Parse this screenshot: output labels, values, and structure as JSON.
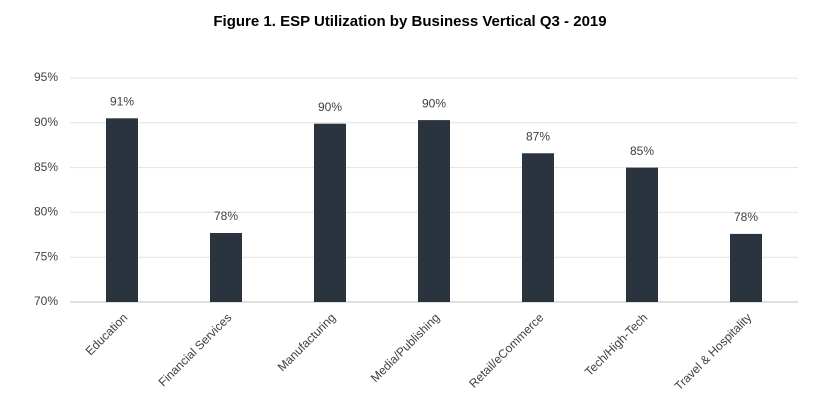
{
  "chart_data": {
    "type": "bar",
    "title": "Figure 1. ESP Utilization by Business Vertical Q3 - 2019",
    "categories": [
      "Education",
      "Financial Services",
      "Manufacturing",
      "Media/Publishing",
      "Retail/eCommerce",
      "Tech/High-Tech",
      "Travel & Hospitality"
    ],
    "values": [
      90.5,
      77.7,
      89.9,
      90.3,
      86.6,
      85.0,
      77.6
    ],
    "value_labels": [
      "91%",
      "78%",
      "90%",
      "90%",
      "87%",
      "85%",
      "78%"
    ],
    "color": "#29343f",
    "ylim": [
      70,
      95
    ],
    "yticks": [
      {
        "value": 70,
        "label": "70%"
      },
      {
        "value": 75,
        "label": "75%"
      },
      {
        "value": 80,
        "label": "80%"
      },
      {
        "value": 85,
        "label": "85%"
      },
      {
        "value": 90,
        "label": "90%"
      },
      {
        "value": 95,
        "label": "95%"
      }
    ],
    "grid": true
  }
}
